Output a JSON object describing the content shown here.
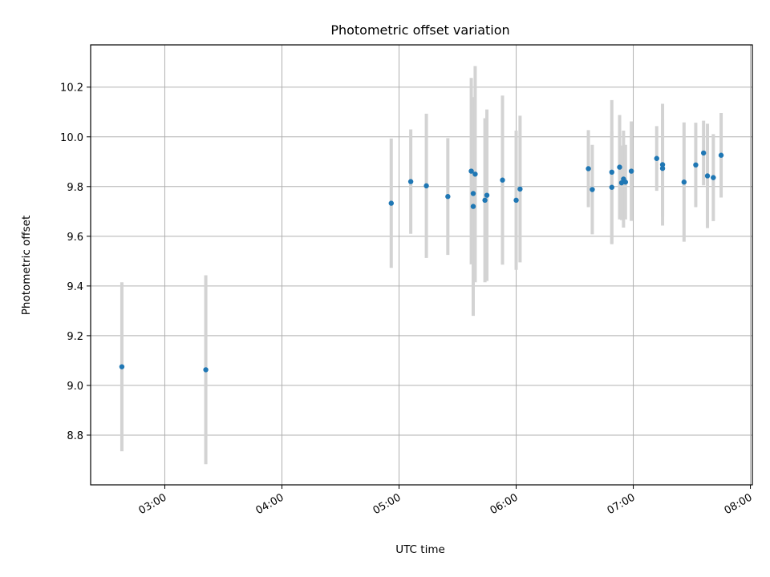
{
  "chart_data": {
    "type": "scatter",
    "title": "Photometric offset variation",
    "xlabel": "UTC time",
    "ylabel": "Photometric offset",
    "x_axis_kind": "time",
    "xlim": [
      "02:22",
      "08:01"
    ],
    "ylim": [
      8.6,
      10.37
    ],
    "grid": true,
    "x_ticks": [
      "03:00",
      "04:00",
      "05:00",
      "06:00",
      "07:00",
      "08:00"
    ],
    "y_ticks": [
      "8.8",
      "9.0",
      "9.2",
      "9.4",
      "9.6",
      "9.8",
      "10.0",
      "10.2"
    ],
    "colors": {
      "point": "#1f77b4",
      "errorbar": "#d3d3d3",
      "grid": "#b0b0b0",
      "axes": "#000000"
    },
    "points": [
      {
        "x": "02:38",
        "y": 9.075,
        "err": 0.34
      },
      {
        "x": "03:21",
        "y": 9.063,
        "err": 0.38
      },
      {
        "x": "04:56",
        "y": 9.733,
        "err": 0.26
      },
      {
        "x": "05:06",
        "y": 9.82,
        "err": 0.21
      },
      {
        "x": "05:14",
        "y": 9.803,
        "err": 0.29
      },
      {
        "x": "05:25",
        "y": 9.76,
        "err": 0.235
      },
      {
        "x": "05:37",
        "y": 9.862,
        "err": 0.375
      },
      {
        "x": "05:38",
        "y": 9.72,
        "err": 0.44
      },
      {
        "x": "05:38",
        "y": 9.772,
        "err": 0.37
      },
      {
        "x": "05:39",
        "y": 9.85,
        "err": 0.435
      },
      {
        "x": "05:44",
        "y": 9.745,
        "err": 0.33
      },
      {
        "x": "05:45",
        "y": 9.765,
        "err": 0.345
      },
      {
        "x": "05:53",
        "y": 9.826,
        "err": 0.34
      },
      {
        "x": "06:00",
        "y": 9.745,
        "err": 0.28
      },
      {
        "x": "06:02",
        "y": 9.79,
        "err": 0.295
      },
      {
        "x": "06:37",
        "y": 9.872,
        "err": 0.155
      },
      {
        "x": "06:39",
        "y": 9.788,
        "err": 0.18
      },
      {
        "x": "06:49",
        "y": 9.858,
        "err": 0.29
      },
      {
        "x": "06:49",
        "y": 9.797,
        "err": 0.225
      },
      {
        "x": "06:53",
        "y": 9.878,
        "err": 0.21
      },
      {
        "x": "06:54",
        "y": 9.815,
        "err": 0.15
      },
      {
        "x": "06:55",
        "y": 9.83,
        "err": 0.195
      },
      {
        "x": "06:56",
        "y": 9.818,
        "err": 0.15
      },
      {
        "x": "06:59",
        "y": 9.862,
        "err": 0.2
      },
      {
        "x": "07:12",
        "y": 9.913,
        "err": 0.13
      },
      {
        "x": "07:15",
        "y": 9.873,
        "err": 0.195
      },
      {
        "x": "07:15",
        "y": 9.888,
        "err": 0.245
      },
      {
        "x": "07:26",
        "y": 9.818,
        "err": 0.24
      },
      {
        "x": "07:32",
        "y": 9.887,
        "err": 0.17
      },
      {
        "x": "07:36",
        "y": 9.935,
        "err": 0.13
      },
      {
        "x": "07:38",
        "y": 9.843,
        "err": 0.21
      },
      {
        "x": "07:41",
        "y": 9.836,
        "err": 0.175
      },
      {
        "x": "07:45",
        "y": 9.926,
        "err": 0.17
      }
    ]
  }
}
